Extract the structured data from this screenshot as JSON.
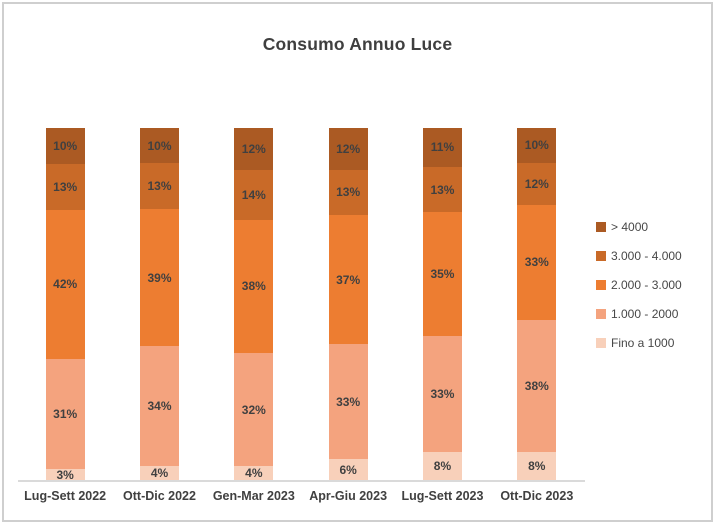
{
  "chart_data": {
    "type": "bar",
    "subtype": "stacked-100-percent-column",
    "title": "Consumo Annuo Luce",
    "categories": [
      "Lug-Sett 2022",
      "Ott-Dic 2022",
      "Gen-Mar 2023",
      "Apr-Giu 2023",
      "Lug-Sett 2023",
      "Ott-Dic 2023"
    ],
    "series": [
      {
        "name": "> 4000",
        "color": "#AB5A23",
        "values": [
          10,
          10,
          12,
          12,
          11,
          10
        ]
      },
      {
        "name": "3.000 - 4.000",
        "color": "#C96A28",
        "values": [
          13,
          13,
          14,
          13,
          13,
          12
        ]
      },
      {
        "name": "2.000 - 3.000",
        "color": "#ED7D31",
        "values": [
          42,
          39,
          38,
          37,
          35,
          33
        ]
      },
      {
        "name": "1.000 - 2000",
        "color": "#F4A37E",
        "values": [
          31,
          34,
          32,
          33,
          33,
          38
        ]
      },
      {
        "name": "Fino a 1000",
        "color": "#F8D0BA",
        "values": [
          3,
          4,
          4,
          6,
          8,
          8
        ]
      }
    ],
    "data_label_suffix": "%",
    "xlabel": "",
    "ylabel": "",
    "grid": false,
    "legend_position": "right",
    "axis_line_color": "#DADADA",
    "text_color": "#404040"
  }
}
